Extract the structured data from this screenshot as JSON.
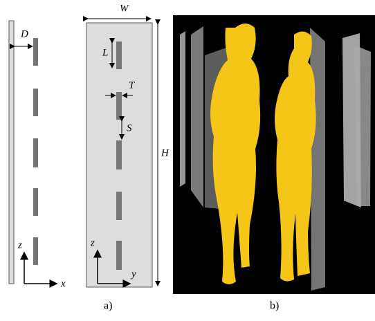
{
  "figure": {
    "labels": {
      "D": "D",
      "W": "W",
      "L": "L",
      "T": "T",
      "S": "S",
      "H": "H",
      "z_left": "z",
      "x": "x",
      "z_mid": "z",
      "y": "y"
    },
    "captions": {
      "a": "a)",
      "b": "b)"
    }
  }
}
